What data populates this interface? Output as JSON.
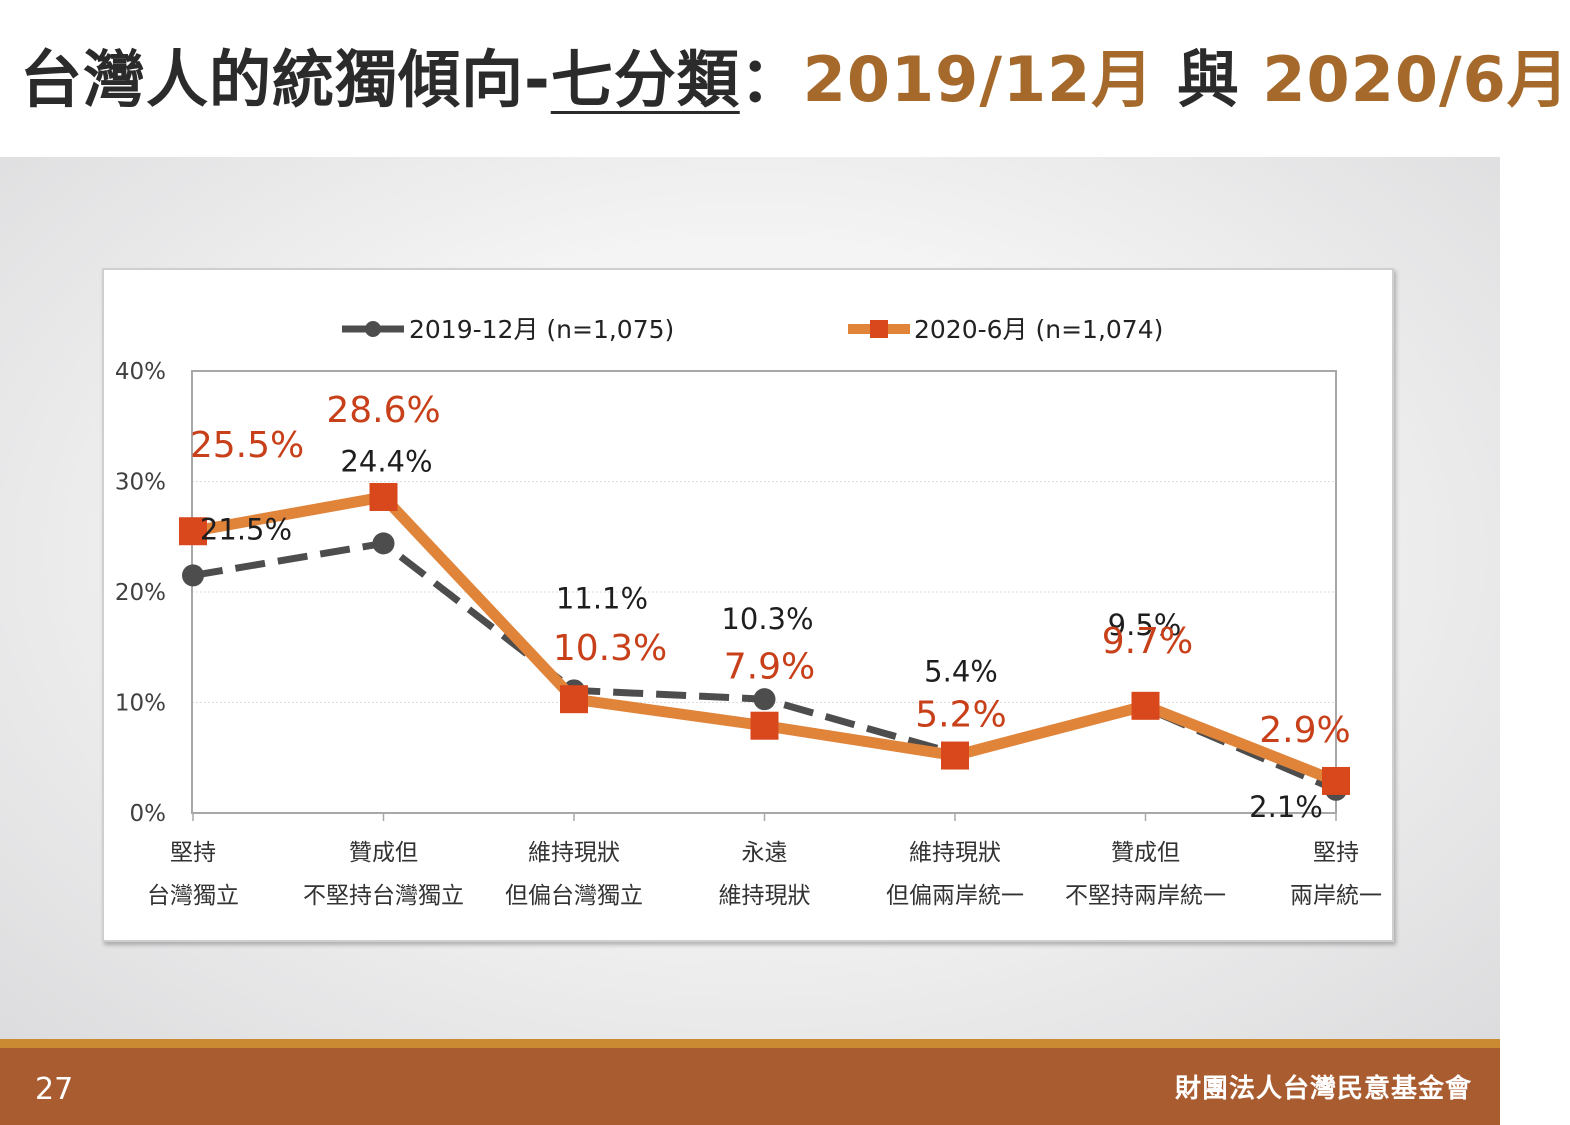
{
  "title": {
    "main_a": "台灣人的統獨傾向-",
    "main_b": "七分類",
    "separator": "：",
    "date1": "2019/12月",
    "joiner": " 與 ",
    "date2": "2020/6月"
  },
  "colors": {
    "accent": "#a5692b",
    "series_2019": "#4d4d4d",
    "series_2020": "#e0843a",
    "marker_2020": "#d9481c",
    "label_2020": "#c8401a",
    "footer": "#a95c30"
  },
  "chart_data": {
    "type": "line",
    "categories": [
      [
        "堅持",
        "台灣獨立"
      ],
      [
        "贊成但",
        "不堅持台灣獨立"
      ],
      [
        "維持現狀",
        "但偏台灣獨立"
      ],
      [
        "永遠",
        "維持現狀"
      ],
      [
        "維持現狀",
        "但偏兩岸統一"
      ],
      [
        "贊成但",
        "不堅持兩岸統一"
      ],
      [
        "堅持",
        "兩岸統一"
      ]
    ],
    "series": [
      {
        "name": "2019-12月 (n=1,075)",
        "style": "dashed",
        "marker": "circle",
        "values": [
          21.5,
          24.4,
          11.1,
          10.3,
          5.4,
          9.5,
          2.1
        ],
        "labels": [
          "21.5%",
          "24.4%",
          "11.1%",
          "10.3%",
          "5.4%",
          "9.5%",
          "2.1%"
        ]
      },
      {
        "name": "2020-6月 (n=1,074)",
        "style": "solid",
        "marker": "square",
        "values": [
          25.5,
          28.6,
          10.3,
          7.9,
          5.2,
          9.7,
          2.9
        ],
        "labels": [
          "25.5%",
          "28.6%",
          "10.3%",
          "7.9%",
          "5.2%",
          "9.7%",
          "2.9%"
        ]
      }
    ],
    "yticks": [
      "0%",
      "10%",
      "20%",
      "30%",
      "40%"
    ],
    "ylim": [
      0,
      40
    ],
    "grid": true,
    "legend": "top"
  },
  "footer": {
    "page": "27",
    "org": "財團法人台灣民意基金會"
  }
}
